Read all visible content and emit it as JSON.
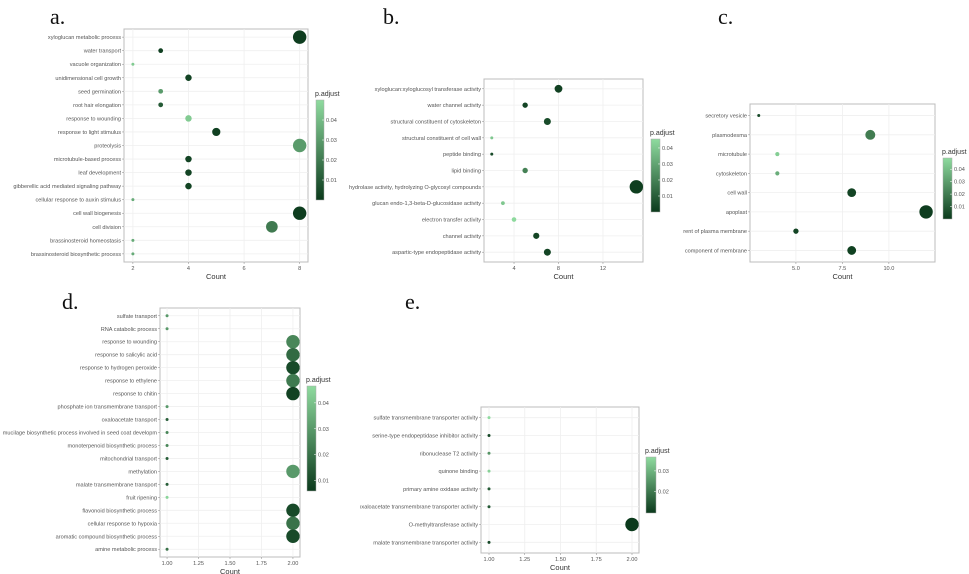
{
  "colors": {
    "low_p": "#0b3a1c",
    "high_p": "#8fdb9f",
    "plot_border": "#bcbcbc",
    "grid": "#efefef"
  },
  "chart_data": [
    {
      "type": "scatter",
      "panel": "a.",
      "xlabel": "Count",
      "legend_title": "p.adjust",
      "xticks": [
        "2",
        "4",
        "6",
        "8"
      ],
      "xtick_values": [
        2,
        4,
        6,
        8
      ],
      "xlim": [
        1.68,
        8.3
      ],
      "legend_ticks": [
        "0.04",
        "0.03",
        "0.02",
        "0.01"
      ],
      "legend_tick_values": [
        0.04,
        0.03,
        0.02,
        0.01
      ],
      "legend_range": [
        0,
        0.05
      ],
      "categories": [
        "xyloglucan metabolic process",
        "water transport",
        "vacuole organization",
        "unidimensional cell growth",
        "seed germination",
        "root hair elongation",
        "response to wounding",
        "response to light stimulus",
        "proteolysis",
        "microtubule-based process",
        "leaf development",
        "gibberellic acid mediated signaling pathway",
        "cellular response to auxin stimulus",
        "cell wall biogenesis",
        "cell division",
        "brassinosteroid homeostasis",
        "brassinosteroid biosynthetic process"
      ],
      "count": [
        8,
        3,
        2,
        4,
        3,
        3,
        4,
        5,
        8,
        4,
        4,
        4,
        2,
        8,
        7,
        2,
        2
      ],
      "p_adjust": [
        0.001,
        0.002,
        0.045,
        0.003,
        0.03,
        0.01,
        0.045,
        0.002,
        0.03,
        0.003,
        0.003,
        0.003,
        0.035,
        0.001,
        0.02,
        0.035,
        0.035
      ]
    },
    {
      "type": "scatter",
      "panel": "b.",
      "xlabel": "Count",
      "legend_title": "p.adjust",
      "xticks": [
        "4",
        "8",
        "12"
      ],
      "xtick_values": [
        4,
        8,
        12
      ],
      "xlim": [
        1.3,
        15.6
      ],
      "legend_ticks": [
        "0.04",
        "0.03",
        "0.02",
        "0.01"
      ],
      "legend_tick_values": [
        0.04,
        0.03,
        0.02,
        0.01
      ],
      "legend_range": [
        0,
        0.0456
      ],
      "categories": [
        "xyloglucan:xyloglucosyl transferase activity",
        "water channel activity",
        "structural constituent of cytoskeleton",
        "structural constituent of cell wall",
        "peptide binding",
        "lipid binding",
        "hydrolase activity, hydrolyzing O-glycosyl compounds",
        "glucan endo-1,3-beta-D-glucosidase activity",
        "electron transfer activity",
        "channel activity",
        "aspartic-type endopeptidase activity"
      ],
      "count": [
        8,
        5,
        7,
        2,
        2,
        5,
        15,
        3,
        4,
        6,
        7
      ],
      "p_adjust": [
        0.002,
        0.003,
        0.005,
        0.04,
        0.005,
        0.02,
        0.001,
        0.04,
        0.045,
        0.003,
        0.003
      ]
    },
    {
      "type": "scatter",
      "panel": "c.",
      "xlabel": "Count",
      "legend_title": "p.adjust",
      "xticks": [
        "5.0",
        "7.5",
        "10.0"
      ],
      "xtick_values": [
        5,
        7.5,
        10
      ],
      "xlim": [
        2.53,
        12.48
      ],
      "legend_ticks": [
        "0.04",
        "0.03",
        "0.02",
        "0.01"
      ],
      "legend_tick_values": [
        0.04,
        0.03,
        0.02,
        0.01
      ],
      "legend_range": [
        0,
        0.049
      ],
      "categories": [
        "secretory vesicle",
        "plasmodesma",
        "microtubule",
        "cytoskeleton",
        "cell wall",
        "apoplast",
        "rent of plasma membrane",
        "component of membrane"
      ],
      "count": [
        3,
        9,
        4,
        4,
        8,
        12,
        5,
        8
      ],
      "p_adjust": [
        0.005,
        0.02,
        0.045,
        0.035,
        0.003,
        0.001,
        0.003,
        0.002
      ]
    },
    {
      "type": "scatter",
      "panel": "d.",
      "xlabel": "Count",
      "legend_title": "p.adjust",
      "xticks": [
        "1.00",
        "1.25",
        "1.50",
        "1.75",
        "2.00"
      ],
      "xtick_values": [
        1,
        1.25,
        1.5,
        1.75,
        2
      ],
      "xlim": [
        0.944,
        2.056
      ],
      "legend_ticks": [
        "0.04",
        "0.03",
        "0.02",
        "0.01"
      ],
      "legend_tick_values": [
        0.04,
        0.03,
        0.02,
        0.01
      ],
      "legend_range": [
        0.006,
        0.0465
      ],
      "categories": [
        "sulfate transport",
        "RNA catabolic process",
        "response to wounding",
        "response to salicylic acid",
        "response to hydrogen peroxide",
        "response to ethylene",
        "response to chitin",
        "phosphate ion transmembrane transport",
        "oxaloacetate transport",
        "mucilage biosynthetic process involved in seed coat developm",
        "monoterpenoid biosynthetic process",
        "mitochondrial transport",
        "methylation",
        "malate transmembrane transport",
        "fruit ripening",
        "flavonoid biosynthetic process",
        "cellular response to hypoxia",
        "aromatic compound biosynthetic process",
        "amine metabolic process"
      ],
      "count": [
        1,
        1,
        2,
        2,
        2,
        2,
        2,
        1,
        1,
        1,
        1,
        1,
        2,
        1,
        1,
        2,
        2,
        2,
        1
      ],
      "p_adjust": [
        0.03,
        0.03,
        0.025,
        0.018,
        0.01,
        0.022,
        0.008,
        0.03,
        0.015,
        0.025,
        0.025,
        0.015,
        0.03,
        0.015,
        0.045,
        0.01,
        0.02,
        0.01,
        0.02
      ]
    },
    {
      "type": "scatter",
      "panel": "e.",
      "xlabel": "Count",
      "legend_title": "p.adjust",
      "xticks": [
        "1.00",
        "1.25",
        "1.50",
        "1.75",
        "2.00"
      ],
      "xtick_values": [
        1,
        1.25,
        1.5,
        1.75,
        2
      ],
      "xlim": [
        0.944,
        2.049
      ],
      "legend_ticks": [
        "0.03",
        "0.02"
      ],
      "legend_tick_values": [
        0.03,
        0.02
      ],
      "legend_range": [
        0.0097,
        0.0367
      ],
      "categories": [
        "sulfate transmembrane transporter activity",
        "serine-type endopeptidase inhibitor activity",
        "ribonuclease T2 activity",
        "quinone binding",
        "primary amine oxidase activity",
        "oxaloacetate transmembrane transporter activity",
        "O-methyltransferase activity",
        "malate transmembrane transporter activity"
      ],
      "count": [
        1,
        1,
        1,
        1,
        1,
        1,
        2,
        1
      ],
      "p_adjust": [
        0.037,
        0.012,
        0.025,
        0.035,
        0.015,
        0.015,
        0.005,
        0.012
      ]
    }
  ]
}
